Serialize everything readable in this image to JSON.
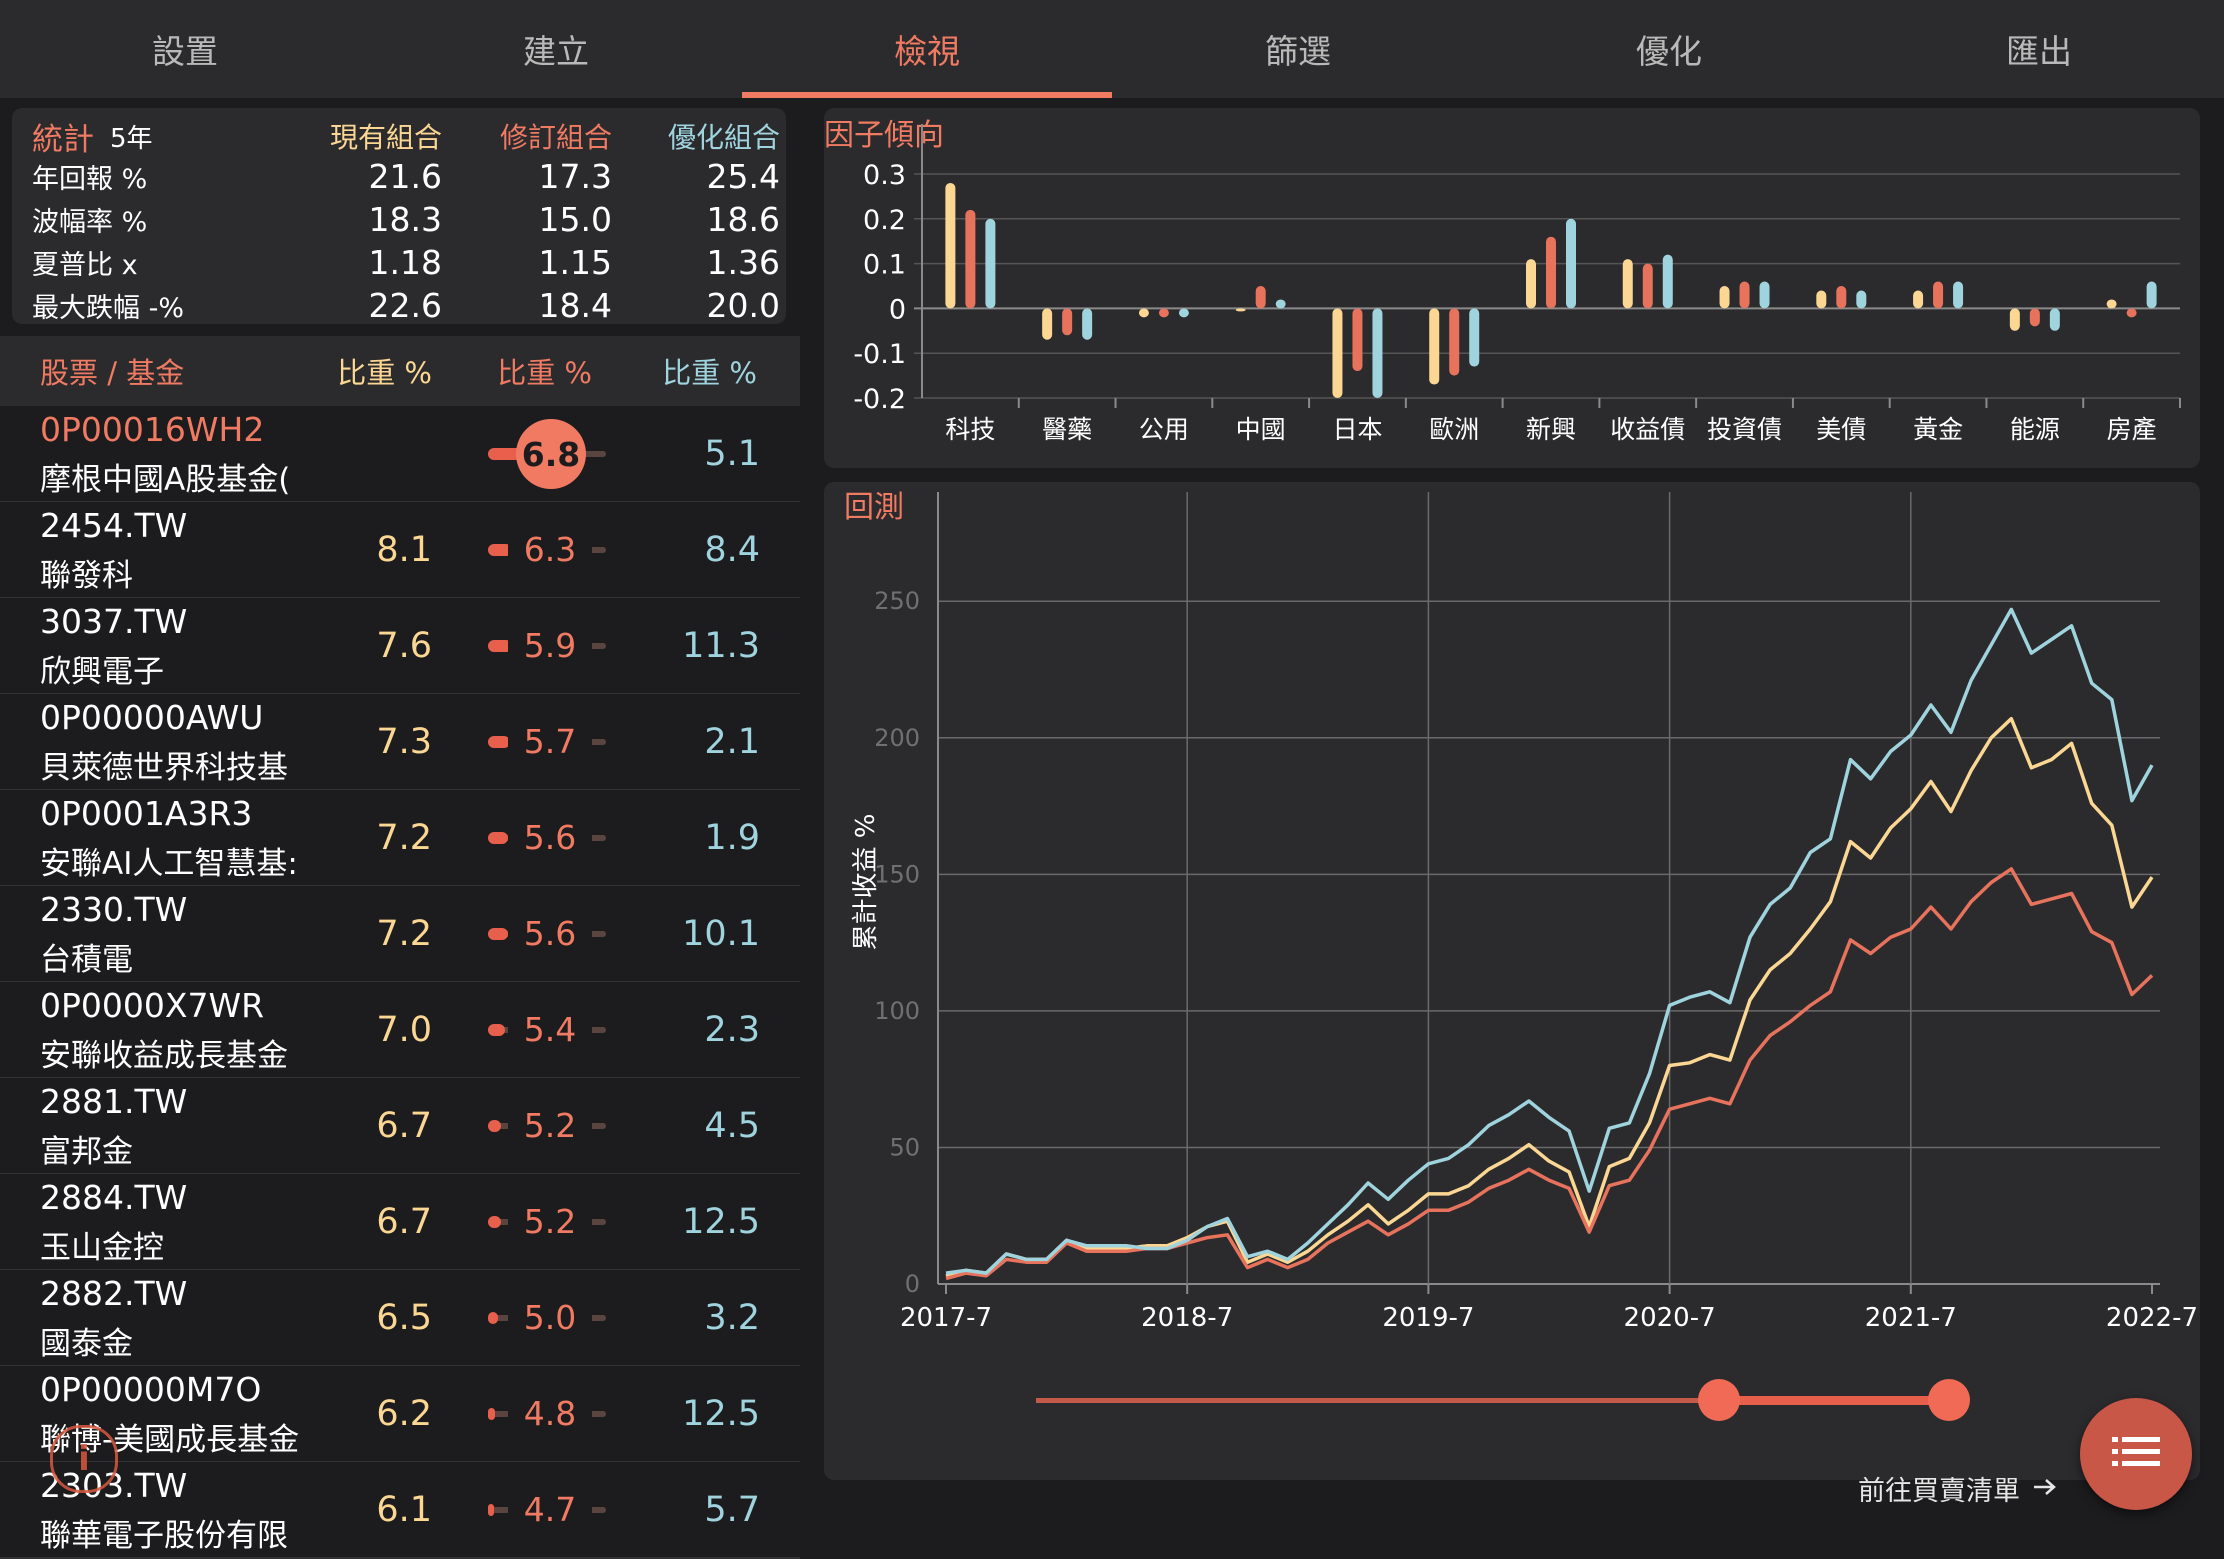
{
  "tabs": [
    {
      "label": "設置",
      "active": false
    },
    {
      "label": "建立",
      "active": false
    },
    {
      "label": "檢視",
      "active": true
    },
    {
      "label": "篩選",
      "active": false
    },
    {
      "label": "優化",
      "active": false
    },
    {
      "label": "匯出",
      "active": false
    }
  ],
  "stats": {
    "title": "統計",
    "period": "5年",
    "col_current": "現有組合",
    "col_revised": "修訂組合",
    "col_optimized": "優化組合",
    "rows": [
      {
        "label": "年回報 %",
        "current": "21.6",
        "revised": "17.3",
        "optimized": "25.4"
      },
      {
        "label": "波幅率 %",
        "current": "18.3",
        "revised": "15.0",
        "optimized": "18.6"
      },
      {
        "label": "夏普比 x",
        "current": "1.18",
        "revised": "1.15",
        "optimized": "1.36"
      },
      {
        "label": "最大跌幅 -%",
        "current": "22.6",
        "revised": "18.4",
        "optimized": "20.0"
      }
    ]
  },
  "holdings": {
    "header_name": "股票 / 基金",
    "header_w1": "比重 %",
    "header_w2": "比重 %",
    "header_w3": "比重 %",
    "rows": [
      {
        "ticker": "0P00016WH2",
        "name": "摩根中國A股基金(",
        "current": "",
        "revised": "6.8",
        "optimized": "5.1",
        "selected": true
      },
      {
        "ticker": "2454.TW",
        "name": "聯發科",
        "current": "8.1",
        "revised": "6.3",
        "optimized": "8.4"
      },
      {
        "ticker": "3037.TW",
        "name": "欣興電子",
        "current": "7.6",
        "revised": "5.9",
        "optimized": "11.3"
      },
      {
        "ticker": "0P00000AWU",
        "name": "貝萊德世界科技基",
        "current": "7.3",
        "revised": "5.7",
        "optimized": "2.1"
      },
      {
        "ticker": "0P0001A3R3",
        "name": "安聯AI人工智慧基:",
        "current": "7.2",
        "revised": "5.6",
        "optimized": "1.9"
      },
      {
        "ticker": "2330.TW",
        "name": "台積電",
        "current": "7.2",
        "revised": "5.6",
        "optimized": "10.1"
      },
      {
        "ticker": "0P0000X7WR",
        "name": "安聯收益成長基金",
        "current": "7.0",
        "revised": "5.4",
        "optimized": "2.3"
      },
      {
        "ticker": "2881.TW",
        "name": "富邦金",
        "current": "6.7",
        "revised": "5.2",
        "optimized": "4.5"
      },
      {
        "ticker": "2884.TW",
        "name": "玉山金控",
        "current": "6.7",
        "revised": "5.2",
        "optimized": "12.5"
      },
      {
        "ticker": "2882.TW",
        "name": "國泰金",
        "current": "6.5",
        "revised": "5.0",
        "optimized": "3.2"
      },
      {
        "ticker": "0P00000M7O",
        "name": "聯博-美國成長基金",
        "current": "6.2",
        "revised": "4.8",
        "optimized": "12.5"
      },
      {
        "ticker": "2303.TW",
        "name": "聯華電子股份有限",
        "current": "6.1",
        "revised": "4.7",
        "optimized": "5.7"
      }
    ]
  },
  "colors": {
    "accent": "#f07a62",
    "current": "#fbd793",
    "revised": "#e8735d",
    "optimized": "#9fd3de",
    "panel": "#2b2b2d",
    "background": "#1c1c1e"
  },
  "factor_chart": {
    "title": "因子傾向",
    "chart_data": {
      "type": "bar",
      "categories": [
        "科技",
        "醫藥",
        "公用",
        "中國",
        "日本",
        "歐洲",
        "新興",
        "收益債",
        "投資債",
        "美債",
        "黃金",
        "能源",
        "房產"
      ],
      "yticks": [
        "0.3",
        "0.2",
        "0.1",
        "0",
        "-0.1",
        "-0.2"
      ],
      "ylim": [
        -0.2,
        0.3
      ],
      "series": [
        {
          "values": [
            0.28,
            -0.07,
            -0.02,
            0.0,
            -0.2,
            -0.17,
            0.11,
            0.11,
            0.05,
            0.04,
            0.04,
            -0.05,
            0.02
          ]
        },
        {
          "values": [
            0.22,
            -0.06,
            -0.02,
            0.05,
            -0.14,
            -0.15,
            0.16,
            0.1,
            0.06,
            0.05,
            0.06,
            -0.04,
            -0.02
          ]
        },
        {
          "values": [
            0.2,
            -0.07,
            -0.02,
            0.02,
            -0.2,
            -0.13,
            0.2,
            0.12,
            0.06,
            0.04,
            0.06,
            -0.05,
            0.06
          ]
        }
      ]
    }
  },
  "backtest_chart": {
    "title": "回測",
    "ylabel": "累計收益 %",
    "chart_data": {
      "type": "line",
      "xticks": [
        "2017-7",
        "2018-7",
        "2019-7",
        "2020-7",
        "2021-7",
        "2022-7"
      ],
      "yticks": [
        "0",
        "50",
        "100",
        "150",
        "200",
        "250"
      ],
      "ylim": [
        0,
        290
      ],
      "xlim": [
        "2017-7",
        "2022-7"
      ],
      "series": [
        {
          "values": [
            3,
            5,
            4,
            11,
            9,
            9,
            16,
            13,
            13,
            13,
            14,
            14,
            17,
            21,
            23,
            8,
            11,
            8,
            12,
            18,
            23,
            29,
            22,
            27,
            33,
            33,
            36,
            42,
            46,
            51,
            45,
            41,
            21,
            43,
            46,
            59,
            80,
            81,
            84,
            82,
            104,
            115,
            121,
            130,
            140,
            162,
            156,
            167,
            174,
            184,
            173,
            188,
            200,
            207,
            189,
            192,
            198,
            176,
            168,
            138,
            149
          ]
        },
        {
          "values": [
            2,
            4,
            3,
            9,
            8,
            8,
            15,
            12,
            12,
            12,
            13,
            13,
            15,
            17,
            18,
            6,
            9,
            6,
            9,
            15,
            19,
            23,
            18,
            22,
            27,
            27,
            30,
            35,
            38,
            42,
            38,
            35,
            19,
            36,
            38,
            49,
            64,
            66,
            68,
            66,
            82,
            91,
            96,
            102,
            107,
            126,
            121,
            127,
            130,
            138,
            130,
            140,
            147,
            152,
            139,
            141,
            143,
            129,
            125,
            106,
            113
          ]
        },
        {
          "values": [
            4,
            5,
            4,
            11,
            9,
            9,
            16,
            14,
            14,
            14,
            13,
            13,
            16,
            21,
            24,
            10,
            12,
            9,
            15,
            22,
            29,
            37,
            31,
            38,
            44,
            46,
            51,
            58,
            62,
            67,
            61,
            56,
            34,
            57,
            59,
            77,
            102,
            105,
            107,
            103,
            127,
            139,
            145,
            158,
            163,
            192,
            185,
            195,
            201,
            212,
            202,
            221,
            234,
            247,
            231,
            236,
            241,
            220,
            214,
            177,
            190
          ]
        }
      ]
    }
  },
  "footer": {
    "buy_list": "前往買賣清單",
    "buy_list_icon": "arrow-right-icon",
    "fab_icon": "list-icon",
    "info_icon": "info-icon"
  }
}
